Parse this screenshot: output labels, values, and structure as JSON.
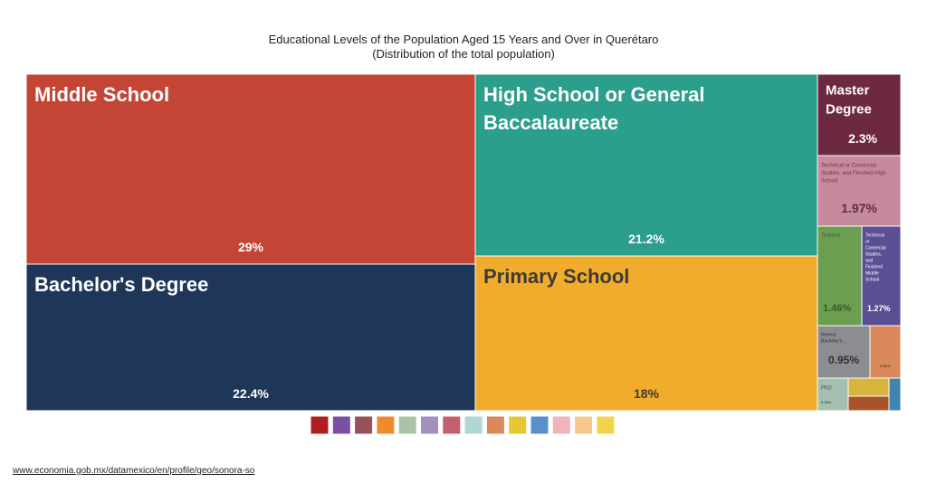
{
  "title": "Educational Levels of the Population Aged 15 Years and Over in Querétaro",
  "subtitle": "(Distribution of the total population)",
  "source_url": "www.economia.gob.mx/datamexico/en/profile/geo/sonora-so",
  "chart_data": {
    "type": "treemap",
    "title": "Educational Levels of the Population Aged 15 Years and Over in Querétaro",
    "subtitle": "(Distribution of the total population)",
    "items": [
      {
        "label": "Middle School",
        "value_label": "29%",
        "value": 29,
        "color": "#c44535"
      },
      {
        "label": "Bachelor's Degree",
        "value_label": "22.4%",
        "value": 22.4,
        "color": "#1e3657"
      },
      {
        "label": "High School or General Baccalaureate",
        "value_label": "21.2%",
        "value": 21.2,
        "color": "#2b9e8c"
      },
      {
        "label": "Primary School",
        "value_label": "18%",
        "value": 18,
        "color": "#f2ac2b"
      },
      {
        "label": "Master Degree",
        "value_label": "2.3%",
        "value": 2.3,
        "color": "#6d2941"
      },
      {
        "label": "Technical or Comercial Studies, and Finished High School",
        "value_label": "1.97%",
        "value": 1.97,
        "color": "#c58a9c"
      },
      {
        "label": "Technical",
        "value_label": "1.46%",
        "value": 1.46,
        "color": "#6b9e4f"
      },
      {
        "label": "Technical or Comercial Studies, and Finished Middle School",
        "value_label": "1.27%",
        "value": 1.27,
        "color": "#5a4f94"
      },
      {
        "label": "Normal Bachelor's...",
        "value_label": "0.95%",
        "value": 0.95,
        "color": "#8b8d92"
      },
      {
        "label": "",
        "value_label": "0.5x%",
        "value": 0.5,
        "color": "#d9895c"
      },
      {
        "label": "PhD",
        "value_label": "0.34%",
        "value": 0.34,
        "color": "#a5bfb1"
      },
      {
        "label": "",
        "value_label": "",
        "value": 0.3,
        "color": "#d9b43c"
      },
      {
        "label": "",
        "value_label": "",
        "value": 0.2,
        "color": "#a8532a"
      },
      {
        "label": "",
        "value_label": "",
        "value": 0.1,
        "color": "#3f85b0"
      }
    ],
    "legend_colors": [
      "#b01f1f",
      "#7b4fa1",
      "#94535a",
      "#f08a2b",
      "#a9c4a4",
      "#a390bf",
      "#c4606e",
      "#aed8d6",
      "#d9895c",
      "#e6c733",
      "#5a8fcc",
      "#f0b5b8",
      "#f5c98a",
      "#f2d44a"
    ]
  }
}
